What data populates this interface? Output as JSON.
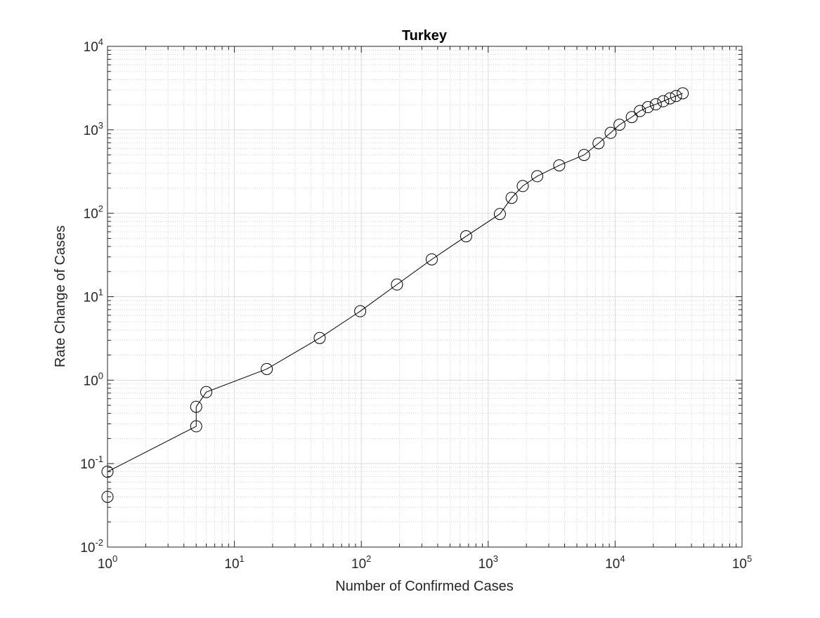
{
  "chart_data": {
    "type": "line",
    "title": "Turkey",
    "xlabel": "Number of Confirmed Cases",
    "ylabel": "Rate Change of Cases",
    "xscale": "log",
    "yscale": "log",
    "xlim": [
      1,
      100000
    ],
    "ylim": [
      0.01,
      10000
    ],
    "grid": true,
    "minor_grid": true,
    "x_tick_labels": [
      {
        "base": "10",
        "exp": "0"
      },
      {
        "base": "10",
        "exp": "1"
      },
      {
        "base": "10",
        "exp": "2"
      },
      {
        "base": "10",
        "exp": "3"
      },
      {
        "base": "10",
        "exp": "4"
      },
      {
        "base": "10",
        "exp": "5"
      }
    ],
    "y_tick_labels": [
      {
        "base": "10",
        "exp": "-2"
      },
      {
        "base": "10",
        "exp": "-1"
      },
      {
        "base": "10",
        "exp": "0"
      },
      {
        "base": "10",
        "exp": "1"
      },
      {
        "base": "10",
        "exp": "2"
      },
      {
        "base": "10",
        "exp": "3"
      },
      {
        "base": "10",
        "exp": "4"
      }
    ],
    "series": [
      {
        "marker": "circle",
        "color": "#000000",
        "points": [
          [
            1,
            0.04
          ],
          [
            1,
            0.08
          ],
          [
            5,
            0.28
          ],
          [
            5,
            0.48
          ],
          [
            6,
            0.72
          ],
          [
            18,
            1.36
          ],
          [
            47,
            3.2
          ],
          [
            98,
            6.7
          ],
          [
            191,
            14.0
          ],
          [
            359,
            28.0
          ],
          [
            670,
            53.0
          ],
          [
            1236,
            98.0
          ],
          [
            1529,
            153.0
          ],
          [
            1872,
            212.0
          ],
          [
            2433,
            278.0
          ],
          [
            3629,
            375.0
          ],
          [
            5698,
            500.0
          ],
          [
            7402,
            690.0
          ],
          [
            9217,
            920.0
          ],
          [
            10827,
            1150.0
          ],
          [
            13531,
            1420.0
          ],
          [
            15679,
            1680.0
          ],
          [
            18135,
            1870.0
          ],
          [
            20921,
            2020.0
          ],
          [
            23934,
            2200.0
          ],
          [
            27069,
            2380.0
          ],
          [
            30217,
            2540.0
          ],
          [
            34109,
            2740.0
          ]
        ]
      }
    ]
  }
}
